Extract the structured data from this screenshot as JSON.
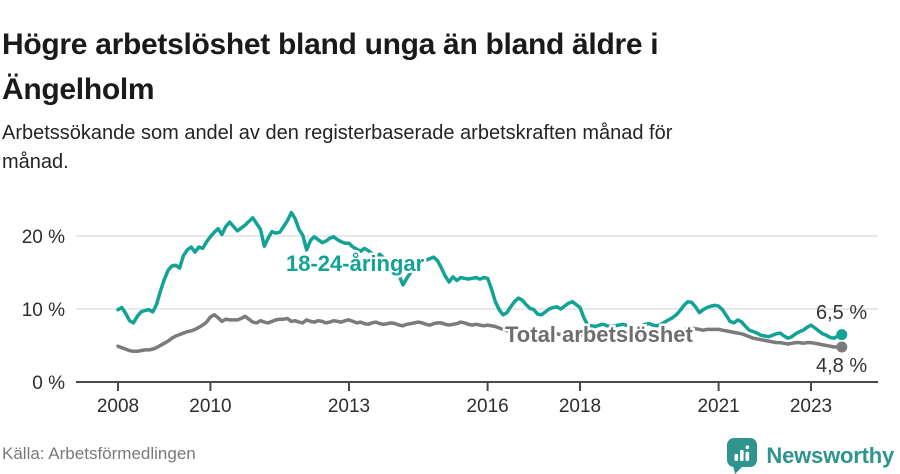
{
  "header": {
    "title_line1": "Högre arbetslöshet bland unga än bland äldre i",
    "title_line2": "Ängelholm",
    "subtitle_line1": "Arbetssökande som andel av den registerbaserade arbetskraften månad för",
    "subtitle_line2": "månad."
  },
  "chart_data": {
    "type": "line",
    "title": "Högre arbetslöshet bland unga än bland äldre i Ängelholm",
    "subtitle": "Arbetssökande som andel av den registerbaserade arbetskraften månad för månad.",
    "unit": "%",
    "x_start": "2008-01",
    "x_frequency": "monthly",
    "x_end": "2023-09",
    "ylim": [
      0,
      24
    ],
    "grid": "horizontal",
    "legend_position": "inline-annotations",
    "y_ticks": [
      {
        "value": 0,
        "label": "0 %"
      },
      {
        "value": 10,
        "label": "10 %"
      },
      {
        "value": 20,
        "label": "20 %"
      }
    ],
    "x_ticks": [
      {
        "year": 2008,
        "label": "2008"
      },
      {
        "year": 2010,
        "label": "2010"
      },
      {
        "year": 2013,
        "label": "2013"
      },
      {
        "year": 2016,
        "label": "2016"
      },
      {
        "year": 2018,
        "label": "2018"
      },
      {
        "year": 2021,
        "label": "2021"
      },
      {
        "year": 2023,
        "label": "2023"
      }
    ],
    "series": [
      {
        "id": "youth",
        "name": "18-24-åringar",
        "color": "#13a296",
        "label_color": "#13a296",
        "end_label": "6,5 %",
        "end_value": 6.5,
        "values": [
          9.9,
          10.2,
          9.4,
          8.4,
          8.1,
          9.0,
          9.6,
          9.8,
          9.9,
          9.6,
          10.6,
          12.4,
          14.0,
          15.3,
          15.9,
          16.0,
          15.6,
          17.3,
          18.1,
          18.5,
          17.8,
          18.5,
          18.3,
          19.2,
          19.9,
          20.5,
          21.0,
          20.2,
          21.3,
          21.9,
          21.3,
          20.7,
          21.1,
          21.5,
          22.0,
          22.5,
          21.7,
          20.9,
          18.6,
          19.7,
          20.6,
          20.4,
          20.5,
          21.3,
          22.1,
          23.2,
          22.4,
          20.9,
          20.1,
          18.1,
          19.4,
          19.9,
          19.5,
          19.1,
          19.3,
          19.7,
          19.9,
          19.5,
          19.2,
          19.0,
          19.0,
          18.5,
          18.2,
          17.9,
          18.3,
          18.0,
          17.6,
          17.2,
          17.5,
          17.0,
          16.8,
          16.5,
          16.2,
          14.6,
          13.3,
          14.2,
          15.0,
          15.6,
          16.0,
          16.4,
          16.7,
          16.9,
          17.1,
          16.6,
          15.6,
          14.5,
          13.7,
          14.4,
          13.9,
          14.3,
          14.2,
          14.1,
          14.2,
          14.3,
          14.1,
          14.3,
          14.2,
          12.8,
          11.0,
          9.9,
          9.2,
          9.5,
          10.3,
          11.0,
          11.5,
          11.2,
          10.6,
          10.1,
          9.9,
          9.3,
          9.2,
          9.6,
          10.0,
          10.2,
          10.3,
          10.0,
          10.4,
          10.8,
          11.0,
          10.6,
          10.2,
          8.8,
          7.8,
          7.7,
          7.6,
          7.8,
          7.9,
          7.7,
          7.6,
          7.7,
          7.8,
          7.9,
          7.8,
          7.6,
          7.5,
          7.6,
          7.7,
          7.9,
          8.0,
          7.8,
          7.7,
          7.9,
          8.2,
          8.5,
          8.8,
          9.2,
          9.8,
          10.5,
          11.0,
          10.9,
          10.3,
          9.5,
          9.9,
          10.2,
          10.4,
          10.5,
          10.4,
          9.9,
          9.1,
          8.3,
          8.1,
          8.5,
          8.2,
          7.6,
          7.1,
          6.9,
          6.7,
          6.4,
          6.3,
          6.2,
          6.4,
          6.6,
          6.7,
          6.3,
          6.0,
          6.2,
          6.6,
          6.9,
          7.1,
          7.5,
          7.8,
          7.4,
          7.0,
          6.6,
          6.4,
          6.1,
          6.0,
          6.3,
          6.5
        ]
      },
      {
        "id": "total",
        "name": "Total arbetslöshet",
        "color": "#7b7b7b",
        "label_color": "#6e6e6e",
        "end_label": "4,8 %",
        "end_value": 4.8,
        "values": [
          4.9,
          4.7,
          4.5,
          4.3,
          4.2,
          4.2,
          4.3,
          4.4,
          4.4,
          4.5,
          4.7,
          5.0,
          5.3,
          5.6,
          6.0,
          6.3,
          6.5,
          6.7,
          6.9,
          7.0,
          7.2,
          7.5,
          7.8,
          8.2,
          8.9,
          9.2,
          8.8,
          8.3,
          8.6,
          8.5,
          8.5,
          8.5,
          8.7,
          9.0,
          8.6,
          8.2,
          8.1,
          8.4,
          8.2,
          8.1,
          8.3,
          8.5,
          8.6,
          8.6,
          8.7,
          8.3,
          8.4,
          8.2,
          8.1,
          8.5,
          8.3,
          8.2,
          8.4,
          8.3,
          8.1,
          8.2,
          8.4,
          8.3,
          8.2,
          8.4,
          8.5,
          8.3,
          8.1,
          8.2,
          8.0,
          7.9,
          8.1,
          8.2,
          8.0,
          7.9,
          8.0,
          8.1,
          8.0,
          7.8,
          7.7,
          7.9,
          8.0,
          8.1,
          8.2,
          8.1,
          7.9,
          7.8,
          8.0,
          8.1,
          8.1,
          7.9,
          7.8,
          7.9,
          8.0,
          8.2,
          8.1,
          7.9,
          7.8,
          7.9,
          7.8,
          7.7,
          7.8,
          7.7,
          7.6,
          7.4,
          7.2,
          7.0,
          6.8,
          6.7,
          6.8,
          6.9,
          6.8,
          6.7,
          6.6,
          6.5,
          6.4,
          6.5,
          6.6,
          6.7,
          6.6,
          6.5,
          6.4,
          6.5,
          6.6,
          6.5,
          6.4,
          6.3,
          6.2,
          6.3,
          6.4,
          6.3,
          6.2,
          6.1,
          6.2,
          6.3,
          6.4,
          6.3,
          6.2,
          6.1,
          6.0,
          6.1,
          6.2,
          6.3,
          6.4,
          6.3,
          6.2,
          6.3,
          6.4,
          6.5,
          6.6,
          6.8,
          7.0,
          7.2,
          7.4,
          7.4,
          7.3,
          7.2,
          7.1,
          7.2,
          7.2,
          7.2,
          7.2,
          7.1,
          7.0,
          6.9,
          6.8,
          6.7,
          6.6,
          6.4,
          6.2,
          6.0,
          5.9,
          5.8,
          5.7,
          5.6,
          5.5,
          5.4,
          5.4,
          5.3,
          5.2,
          5.3,
          5.4,
          5.4,
          5.3,
          5.4,
          5.4,
          5.3,
          5.2,
          5.1,
          5.0,
          4.9,
          4.8,
          4.8,
          4.8
        ]
      }
    ],
    "colors": {
      "gridline": "#d9d9d9",
      "axis": "#4a4a4a",
      "tick_label": "#2d2d2d",
      "end_label_text": "#333333"
    }
  },
  "footer": {
    "source": "Källa: Arbetsförmedlingen",
    "brand": "Newsworthy"
  }
}
